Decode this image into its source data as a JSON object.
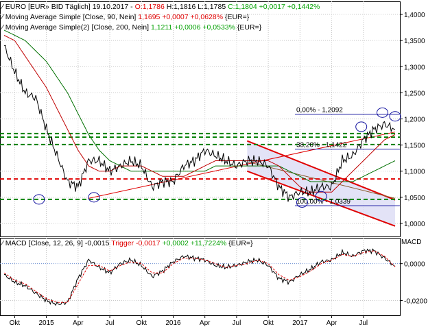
{
  "legend": {
    "main": {
      "name": "EURO [EUR» BID Täglich]",
      "date": "19.10.2017",
      "o": "O:1,1786",
      "h": "H:1,1816",
      "l": "L:1,1785",
      "c": "C:1,1804 +0,0017 +0,1442%"
    },
    "ma90": {
      "name": "Moving Average Simple [Close, 90, Nein]",
      "value": "1,1695 +0,0007 +0,0628%",
      "unit": "{EUR=}"
    },
    "ma200": {
      "name": "Moving Average Simple(2) [Close, 200, Nein]",
      "value": "1,1211 +0,0006 +0,0533%",
      "unit": "{EUR=}"
    },
    "macd": {
      "name": "MACD [Close, 12, 26, 9]",
      "value": "-0,0015",
      "trigger_label": "Trigger",
      "trigger": "-0,0017",
      "change": "+0,0002 +11,7224%",
      "unit": "{EUR=}"
    }
  },
  "macd_panel_label": "MACD",
  "fib_labels": [
    "0,00% - 1,2092",
    "38,20% - 1,1422",
    "100,00% - 1,0339"
  ],
  "colors": {
    "price": "#000000",
    "ma90": "#c00000",
    "ma200": "#007000",
    "channel": "#e00000",
    "fill": "#dcdcf5",
    "dashed": "#008000",
    "fib": "#1414a0",
    "trigger": "#e00000"
  },
  "chart_data": [
    {
      "type": "line",
      "title": "EURO [EUR» BID Täglich]",
      "x_ticks": [
        "Okt",
        "2015",
        "Apr",
        "Jul",
        "Okt",
        "2016",
        "Apr",
        "Jul",
        "Okt",
        "2017",
        "Apr",
        "Jul"
      ],
      "y_ticks": [
        "1,4000",
        "1,3500",
        "1,3000",
        "1,2500",
        "1,2000",
        "1,1500",
        "1,1000",
        "1,0500",
        "1,0000"
      ],
      "ylim": [
        0.975,
        1.425
      ],
      "x": [
        "2014-09",
        "2014-10",
        "2014-11",
        "2014-12",
        "2015-01",
        "2015-02",
        "2015-03",
        "2015-04",
        "2015-05",
        "2015-06",
        "2015-07",
        "2015-08",
        "2015-09",
        "2015-10",
        "2015-11",
        "2015-12",
        "2016-01",
        "2016-02",
        "2016-03",
        "2016-04",
        "2016-05",
        "2016-06",
        "2016-07",
        "2016-08",
        "2016-09",
        "2016-10",
        "2016-11",
        "2016-12",
        "2017-01",
        "2017-02",
        "2017-03",
        "2017-04",
        "2017-05",
        "2017-06",
        "2017-07",
        "2017-08",
        "2017-09",
        "2017-10"
      ],
      "series": [
        {
          "name": "EURO",
          "values": [
            1.34,
            1.29,
            1.25,
            1.24,
            1.18,
            1.13,
            1.08,
            1.07,
            1.12,
            1.12,
            1.1,
            1.11,
            1.12,
            1.11,
            1.07,
            1.08,
            1.08,
            1.11,
            1.12,
            1.14,
            1.13,
            1.12,
            1.11,
            1.12,
            1.12,
            1.11,
            1.07,
            1.05,
            1.06,
            1.06,
            1.07,
            1.07,
            1.12,
            1.13,
            1.16,
            1.18,
            1.19,
            1.18
          ]
        },
        {
          "name": "Moving Average Simple [Close, 90, Nein]",
          "values": [
            1.36,
            1.35,
            1.32,
            1.29,
            1.26,
            1.22,
            1.18,
            1.14,
            1.11,
            1.1,
            1.1,
            1.11,
            1.11,
            1.11,
            1.1,
            1.09,
            1.09,
            1.09,
            1.1,
            1.11,
            1.12,
            1.12,
            1.12,
            1.12,
            1.12,
            1.12,
            1.11,
            1.09,
            1.07,
            1.06,
            1.06,
            1.06,
            1.08,
            1.1,
            1.12,
            1.14,
            1.16,
            1.17
          ]
        },
        {
          "name": "Moving Average Simple(2) [Close, 200, Nein]",
          "values": [
            1.37,
            1.36,
            1.35,
            1.33,
            1.31,
            1.28,
            1.25,
            1.21,
            1.17,
            1.14,
            1.12,
            1.11,
            1.1,
            1.1,
            1.1,
            1.1,
            1.1,
            1.1,
            1.1,
            1.1,
            1.11,
            1.11,
            1.11,
            1.11,
            1.11,
            1.11,
            1.11,
            1.1,
            1.09,
            1.08,
            1.08,
            1.08,
            1.08,
            1.08,
            1.09,
            1.1,
            1.11,
            1.12
          ]
        }
      ],
      "fibonacci": [
        {
          "level": "0,00%",
          "value": 1.2092
        },
        {
          "level": "38,20%",
          "value": 1.1422
        },
        {
          "level": "100,00%",
          "value": 1.0339
        }
      ],
      "horizontal_lines": [
        1.172,
        1.165,
        1.151,
        1.085,
        1.046
      ],
      "grid": true
    },
    {
      "type": "line",
      "title": "MACD [Close, 12, 26, 9]",
      "y_ticks": [
        "0,0000",
        "-0,0200"
      ],
      "ylim": [
        -0.028,
        0.014
      ],
      "series": [
        {
          "name": "MACD",
          "values": [
            -0.006,
            -0.01,
            -0.012,
            -0.016,
            -0.02,
            -0.022,
            -0.021,
            -0.008,
            0.002,
            -0.002,
            -0.005,
            0.0,
            0.002,
            -0.001,
            -0.007,
            -0.004,
            0.001,
            0.004,
            0.003,
            0.002,
            -0.001,
            -0.002,
            -0.001,
            0.001,
            0.002,
            -0.001,
            -0.008,
            -0.01,
            -0.006,
            -0.003,
            0.001,
            0.002,
            0.006,
            0.004,
            0.007,
            0.007,
            0.003,
            -0.0015
          ]
        },
        {
          "name": "Trigger",
          "values": [
            -0.005,
            -0.009,
            -0.011,
            -0.015,
            -0.019,
            -0.021,
            -0.021,
            -0.011,
            -0.001,
            -0.001,
            -0.004,
            -0.001,
            0.001,
            0.0,
            -0.005,
            -0.005,
            0.0,
            0.003,
            0.003,
            0.002,
            0.0,
            -0.002,
            -0.001,
            0.0,
            0.002,
            0.0,
            -0.006,
            -0.009,
            -0.007,
            -0.004,
            0.0,
            0.002,
            0.005,
            0.004,
            0.006,
            0.007,
            0.004,
            -0.0017
          ]
        }
      ],
      "grid": true
    }
  ]
}
